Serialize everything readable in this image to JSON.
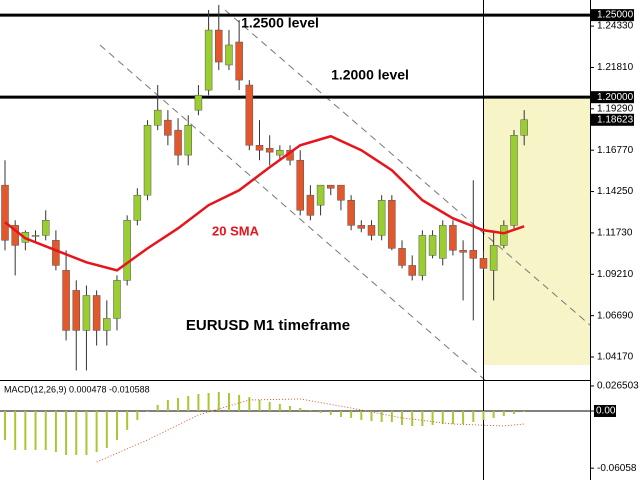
{
  "chart_data": [
    {
      "type": "candlestick",
      "title": "EURUSD M1 timeframe",
      "up_color": "#9acd32",
      "down_color": "#e2572b",
      "candles": {
        "open": [
          1.1464,
          1.1219,
          1.1116,
          1.1152,
          1.1158,
          1.1128,
          1.0945,
          1.0823,
          1.0579,
          1.0792,
          1.0579,
          1.0652,
          1.0884,
          1.125,
          1.1403,
          1.1829,
          1.186,
          1.1799,
          1.1647,
          1.1921,
          1.2043,
          1.2409,
          1.2196,
          1.2336,
          1.2074,
          1.1707,
          1.1689,
          1.1647,
          1.1677,
          1.1616,
          1.1403,
          1.1342,
          1.1464,
          1.1464,
          1.1372,
          1.1219,
          1.1219,
          1.1158,
          1.1372,
          1.1079,
          1.0975,
          1.0914,
          1.1036,
          1.1018,
          1.1219,
          1.1067,
          1.1067,
          1.1018,
          1.0945,
          1.1097,
          1.1219,
          1.1768
        ],
        "high": [
          1.1616,
          1.125,
          1.1189,
          1.1189,
          1.1311,
          1.1189,
          1.1067,
          1.0884,
          1.0853,
          1.0823,
          1.0762,
          1.0914,
          1.128,
          1.1445,
          1.186,
          1.2074,
          1.1921,
          1.1872,
          1.189,
          1.2074,
          1.2531,
          1.2562,
          1.2409,
          1.247,
          1.2104,
          1.186,
          1.1768,
          1.1707,
          1.1707,
          1.1677,
          1.1464,
          1.1464,
          1.1464,
          1.1464,
          1.1403,
          1.125,
          1.125,
          1.1403,
          1.1403,
          1.1128,
          1.1036,
          1.1189,
          1.1189,
          1.125,
          1.125,
          1.1128,
          1.1494,
          1.1067,
          1.1189,
          1.125,
          1.1799,
          1.1921
        ],
        "low": [
          1.1067,
          1.0914,
          1.1067,
          1.1116,
          1.1128,
          1.0945,
          1.0518,
          1.0335,
          1.0335,
          1.0487,
          1.0487,
          1.0579,
          1.0853,
          1.1219,
          1.1372,
          1.1799,
          1.1707,
          1.1585,
          1.1585,
          1.189,
          1.2012,
          1.2165,
          1.2165,
          1.2043,
          1.1677,
          1.1616,
          1.1585,
          1.1616,
          1.1585,
          1.128,
          1.125,
          1.128,
          1.1403,
          1.1311,
          1.1189,
          1.1177,
          1.1128,
          1.1128,
          1.1067,
          1.0957,
          1.0884,
          1.0884,
          1.1018,
          1.0975,
          1.1036,
          1.0762,
          1.064,
          1.0945,
          1.0762,
          1.1079,
          1.1201,
          1.1707
        ],
        "close": [
          1.1128,
          1.1097,
          1.1177,
          1.1158,
          1.125,
          1.0975,
          1.0579,
          1.0579,
          1.0792,
          1.0579,
          1.0652,
          1.0884,
          1.125,
          1.1403,
          1.1829,
          1.1921,
          1.1768,
          1.1647,
          1.1829,
          1.2012,
          1.2409,
          1.2214,
          1.2318,
          1.2104,
          1.1707,
          1.1677,
          1.1665,
          1.1677,
          1.1616,
          1.1311,
          1.128,
          1.1464,
          1.1445,
          1.1372,
          1.1219,
          1.1201,
          1.1158,
          1.1372,
          1.1079,
          1.0975,
          1.0914,
          1.1158,
          1.1158,
          1.1219,
          1.1067,
          1.1055,
          1.1018,
          1.0957,
          1.1097,
          1.1219,
          1.1768,
          1.18623
        ]
      },
      "sma": {
        "name": "20 SMA",
        "color": "#e8141c",
        "x": [
          0,
          2,
          5,
          8,
          11,
          14,
          17,
          20,
          23,
          26,
          29,
          32,
          35,
          38,
          41,
          44,
          47,
          49,
          51
        ],
        "values": [
          1.1238,
          1.114,
          1.1067,
          1.0994,
          1.0945,
          1.1079,
          1.1201,
          1.1342,
          1.1433,
          1.1573,
          1.1707,
          1.1762,
          1.1677,
          1.1555,
          1.1372,
          1.1262,
          1.1189,
          1.1171,
          1.1213
        ]
      },
      "levels": [
        {
          "value": 1.25,
          "label": "1.25000",
          "text": "1.2500 level"
        },
        {
          "value": 1.2,
          "label": "1.20000",
          "text": "1.2000 level"
        }
      ],
      "last_price": {
        "value": 1.18623,
        "label": "1.18623"
      },
      "ylim": [
        1.0277,
        1.2592
      ],
      "yticks": [
        {
          "value": 1.2433,
          "label": "1.24330"
        },
        {
          "value": 1.2181,
          "label": "1.21810"
        },
        {
          "value": 1.1929,
          "label": "1.19290"
        },
        {
          "value": 1.1677,
          "label": "1.16770"
        },
        {
          "value": 1.1425,
          "label": "1.14250"
        },
        {
          "value": 1.1173,
          "label": "1.11730"
        },
        {
          "value": 1.0921,
          "label": "1.09210"
        },
        {
          "value": 1.0669,
          "label": "1.06690"
        },
        {
          "value": 1.0417,
          "label": "1.04170"
        }
      ]
    },
    {
      "type": "macd",
      "title": "MACD(12,26,9) 0.000478 -0.010588",
      "histogram": {
        "color": "#a8c832",
        "values": [
          -0.0307,
          -0.0413,
          -0.0413,
          -0.0413,
          -0.0413,
          -0.0435,
          -0.0466,
          -0.0466,
          -0.0466,
          -0.0435,
          -0.0392,
          -0.0307,
          -0.0201,
          -0.0095,
          -0.0011,
          0.0064,
          0.0117,
          0.0138,
          0.0159,
          0.018,
          0.0191,
          0.0201,
          0.0191,
          0.017,
          0.0148,
          0.0117,
          0.0095,
          0.0074,
          0.0053,
          0.0032,
          0.0011,
          -0.0021,
          -0.0042,
          -0.0064,
          -0.0074,
          -0.0095,
          -0.0106,
          -0.0117,
          -0.0117,
          -0.0148,
          -0.0159,
          -0.0159,
          -0.0148,
          -0.0138,
          -0.0138,
          -0.0138,
          -0.0117,
          -0.0095,
          -0.0074,
          -0.0053,
          -0.0032,
          -0.0011
        ]
      },
      "signal": {
        "color": "#e2572b",
        "x": [
          9,
          14,
          19,
          24,
          29,
          34,
          39,
          44,
          49,
          51
        ],
        "values": [
          -0.0541,
          -0.0307,
          -0.0042,
          0.0117,
          0.0127,
          0.0032,
          -0.0074,
          -0.0138,
          -0.0159,
          -0.0138
        ]
      },
      "ylim": [
        -0.0731,
        0.0307
      ],
      "yticks": [
        0.026503,
        {
          "value": 0,
          "label": "0.00"
        },
        -0.06058
      ]
    }
  ]
}
